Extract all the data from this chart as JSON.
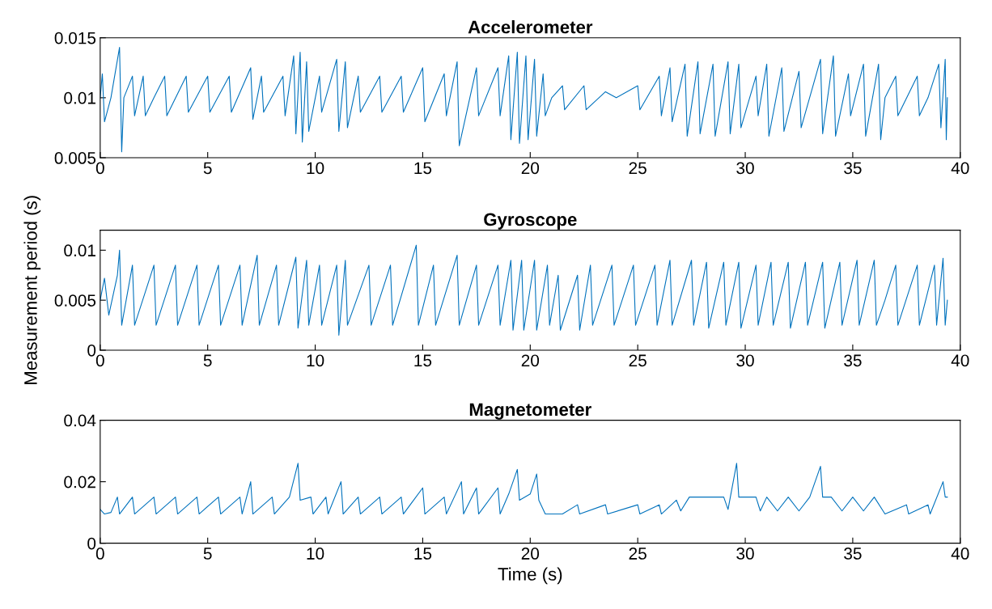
{
  "chart_data": [
    {
      "type": "line",
      "title": "Accelerometer",
      "xlim": [
        0,
        40
      ],
      "xticks": [
        0,
        5,
        10,
        15,
        20,
        25,
        30,
        35,
        40
      ],
      "ylim": [
        0.005,
        0.015
      ],
      "yticks": [
        0.005,
        0.01,
        0.015
      ],
      "grid": false,
      "series": [
        {
          "color": "#0072bd",
          "x": [
            0,
            0.1,
            0.2,
            0.5,
            0.9,
            1.0,
            1.1,
            1.5,
            1.6,
            2.0,
            2.1,
            2.5,
            3.0,
            3.1,
            4.0,
            4.1,
            5.0,
            5.1,
            6.0,
            6.1,
            7.0,
            7.1,
            7.5,
            7.6,
            8.5,
            8.6,
            9.0,
            9.1,
            9.3,
            9.4,
            9.6,
            9.7,
            10.2,
            10.3,
            11.0,
            11.1,
            11.4,
            11.5,
            12.0,
            12.1,
            13.0,
            13.1,
            14.0,
            14.1,
            15.0,
            15.1,
            16.0,
            16.1,
            16.6,
            16.7,
            17.5,
            17.6,
            18.5,
            18.6,
            19.0,
            19.1,
            19.4,
            19.5,
            19.8,
            19.9,
            20.2,
            20.3,
            20.6,
            20.7,
            21.0,
            21.5,
            21.6,
            22.5,
            22.6,
            23.5,
            24.0,
            25.0,
            25.1,
            26.0,
            26.1,
            26.5,
            26.6,
            27.2,
            27.3,
            27.8,
            27.9,
            28.5,
            28.6,
            29.2,
            29.3,
            29.7,
            29.8,
            30.5,
            30.6,
            31.0,
            31.1,
            31.7,
            31.8,
            32.5,
            32.6,
            33.5,
            33.6,
            34.1,
            34.2,
            34.8,
            34.9,
            35.5,
            35.6,
            36.2,
            36.3,
            36.5,
            37.0,
            37.1,
            38.0,
            38.1,
            38.5,
            39.0,
            39.1,
            39.3,
            39.35,
            39.4
          ],
          "values": [
            0.01,
            0.012,
            0.008,
            0.01,
            0.0142,
            0.0055,
            0.01,
            0.0118,
            0.0085,
            0.0118,
            0.0085,
            0.01,
            0.0118,
            0.0085,
            0.0118,
            0.0088,
            0.0118,
            0.0088,
            0.0118,
            0.0088,
            0.0125,
            0.0082,
            0.0118,
            0.0088,
            0.0118,
            0.0085,
            0.0135,
            0.007,
            0.0138,
            0.0063,
            0.013,
            0.0072,
            0.0118,
            0.0088,
            0.0132,
            0.0072,
            0.013,
            0.0075,
            0.0118,
            0.0088,
            0.0118,
            0.0088,
            0.0118,
            0.0088,
            0.0125,
            0.008,
            0.012,
            0.0085,
            0.013,
            0.006,
            0.0125,
            0.0085,
            0.0125,
            0.0085,
            0.0135,
            0.0065,
            0.0138,
            0.0062,
            0.0135,
            0.0065,
            0.0132,
            0.0068,
            0.012,
            0.0085,
            0.01,
            0.011,
            0.009,
            0.011,
            0.009,
            0.0105,
            0.01,
            0.011,
            0.009,
            0.0118,
            0.0085,
            0.0125,
            0.008,
            0.0128,
            0.0068,
            0.013,
            0.007,
            0.0128,
            0.0068,
            0.013,
            0.007,
            0.0128,
            0.0075,
            0.0118,
            0.0085,
            0.0128,
            0.0068,
            0.0125,
            0.0072,
            0.0122,
            0.0075,
            0.0132,
            0.007,
            0.0135,
            0.0068,
            0.012,
            0.0085,
            0.0128,
            0.0068,
            0.0128,
            0.0065,
            0.01,
            0.0118,
            0.0085,
            0.0118,
            0.0085,
            0.01,
            0.0128,
            0.0075,
            0.0132,
            0.0065,
            0.01
          ]
        }
      ]
    },
    {
      "type": "line",
      "title": "Gyroscope",
      "ylabel": "Measurement period (s)",
      "xlim": [
        0,
        40
      ],
      "xticks": [
        0,
        5,
        10,
        15,
        20,
        25,
        30,
        35,
        40
      ],
      "ylim": [
        0,
        0.012
      ],
      "yticks": [
        0,
        0.005,
        0.01
      ],
      "grid": false,
      "series": [
        {
          "color": "#0072bd",
          "x": [
            0,
            0.2,
            0.4,
            0.8,
            0.9,
            1.0,
            1.5,
            1.6,
            2.5,
            2.6,
            3.5,
            3.6,
            4.5,
            4.6,
            5.5,
            5.6,
            6.5,
            6.6,
            7.3,
            7.4,
            8.2,
            8.3,
            9.1,
            9.2,
            9.6,
            9.7,
            10.2,
            10.3,
            11.0,
            11.1,
            11.4,
            11.5,
            12.5,
            12.6,
            13.5,
            13.6,
            14.7,
            14.8,
            15.5,
            15.6,
            16.6,
            16.7,
            17.5,
            17.6,
            18.5,
            18.6,
            19.1,
            19.2,
            19.6,
            19.7,
            20.2,
            20.3,
            20.8,
            20.9,
            21.3,
            21.4,
            22.2,
            22.3,
            22.8,
            22.9,
            23.8,
            23.9,
            24.8,
            24.9,
            25.8,
            25.9,
            26.5,
            26.6,
            27.5,
            27.6,
            28.2,
            28.3,
            29.0,
            29.1,
            29.7,
            29.8,
            30.5,
            30.6,
            31.2,
            31.3,
            32.0,
            32.1,
            32.8,
            32.9,
            33.6,
            33.7,
            34.4,
            34.5,
            35.2,
            35.3,
            36.0,
            36.1,
            36.5,
            37.0,
            37.1,
            38.0,
            38.1,
            38.8,
            38.9,
            39.2,
            39.3,
            39.4
          ],
          "values": [
            0.005,
            0.0072,
            0.0035,
            0.0075,
            0.01,
            0.0025,
            0.0085,
            0.0025,
            0.0085,
            0.0025,
            0.0085,
            0.0025,
            0.0085,
            0.0025,
            0.0085,
            0.0025,
            0.0085,
            0.0025,
            0.0095,
            0.0025,
            0.0085,
            0.0025,
            0.0093,
            0.0022,
            0.009,
            0.0025,
            0.0085,
            0.0025,
            0.0085,
            0.0015,
            0.009,
            0.0025,
            0.0085,
            0.0025,
            0.0085,
            0.0025,
            0.0105,
            0.0025,
            0.0085,
            0.0025,
            0.0095,
            0.0025,
            0.0085,
            0.0025,
            0.0085,
            0.0025,
            0.009,
            0.002,
            0.009,
            0.002,
            0.009,
            0.002,
            0.0085,
            0.0025,
            0.0075,
            0.002,
            0.0075,
            0.002,
            0.0085,
            0.0025,
            0.0085,
            0.0025,
            0.0085,
            0.0025,
            0.0085,
            0.0025,
            0.009,
            0.0025,
            0.009,
            0.0025,
            0.0088,
            0.0022,
            0.0088,
            0.0025,
            0.0088,
            0.0022,
            0.0085,
            0.0025,
            0.0088,
            0.0025,
            0.0088,
            0.0022,
            0.0088,
            0.0025,
            0.0088,
            0.0022,
            0.0088,
            0.0025,
            0.009,
            0.0025,
            0.009,
            0.0025,
            0.005,
            0.0085,
            0.0025,
            0.0085,
            0.0025,
            0.0085,
            0.0025,
            0.0092,
            0.0025,
            0.005
          ]
        }
      ]
    },
    {
      "type": "line",
      "title": "Magnetometer",
      "xlabel": "Time (s)",
      "xlim": [
        0,
        40
      ],
      "xticks": [
        0,
        5,
        10,
        15,
        20,
        25,
        30,
        35,
        40
      ],
      "ylim": [
        0,
        0.04
      ],
      "yticks": [
        0,
        0.02,
        0.04
      ],
      "grid": false,
      "series": [
        {
          "color": "#0072bd",
          "x": [
            0,
            0.2,
            0.5,
            0.8,
            0.9,
            1.5,
            1.6,
            2.5,
            2.6,
            3.5,
            3.6,
            4.5,
            4.6,
            5.5,
            5.6,
            6.5,
            6.6,
            7.0,
            7.1,
            8.0,
            8.1,
            8.8,
            9.2,
            9.3,
            9.8,
            9.9,
            10.5,
            10.6,
            11.2,
            11.3,
            12.0,
            12.1,
            13.0,
            13.1,
            14.0,
            14.1,
            15.0,
            15.1,
            16.0,
            16.1,
            16.8,
            16.9,
            17.5,
            17.6,
            18.5,
            18.6,
            19.0,
            19.4,
            19.5,
            20.0,
            20.3,
            20.4,
            20.7,
            21.5,
            22.2,
            22.3,
            23.5,
            23.6,
            25.0,
            25.1,
            26.0,
            26.1,
            26.8,
            27.0,
            27.4,
            28.0,
            29.0,
            29.2,
            29.6,
            29.7,
            30.5,
            30.7,
            31.0,
            31.5,
            32.0,
            32.5,
            33.0,
            33.5,
            33.6,
            34.0,
            34.5,
            35.0,
            35.5,
            36.0,
            36.5,
            37.5,
            37.6,
            38.5,
            38.6,
            39.2,
            39.3,
            39.4
          ],
          "values": [
            0.011,
            0.0095,
            0.01,
            0.015,
            0.0095,
            0.015,
            0.0095,
            0.015,
            0.0095,
            0.015,
            0.0095,
            0.015,
            0.0095,
            0.015,
            0.0095,
            0.015,
            0.0095,
            0.02,
            0.0095,
            0.015,
            0.0095,
            0.015,
            0.026,
            0.014,
            0.015,
            0.0095,
            0.015,
            0.0095,
            0.02,
            0.0095,
            0.015,
            0.0095,
            0.015,
            0.0095,
            0.015,
            0.0095,
            0.018,
            0.0095,
            0.015,
            0.0095,
            0.02,
            0.0095,
            0.018,
            0.0095,
            0.018,
            0.0095,
            0.016,
            0.024,
            0.014,
            0.016,
            0.0225,
            0.014,
            0.0095,
            0.0095,
            0.0125,
            0.0095,
            0.0125,
            0.0095,
            0.0125,
            0.0095,
            0.0125,
            0.0095,
            0.014,
            0.0105,
            0.015,
            0.015,
            0.015,
            0.011,
            0.026,
            0.015,
            0.015,
            0.0105,
            0.015,
            0.0105,
            0.015,
            0.0105,
            0.015,
            0.025,
            0.015,
            0.015,
            0.0105,
            0.015,
            0.0105,
            0.015,
            0.0095,
            0.0125,
            0.0095,
            0.0125,
            0.0095,
            0.02,
            0.015,
            0.015
          ]
        }
      ]
    }
  ]
}
